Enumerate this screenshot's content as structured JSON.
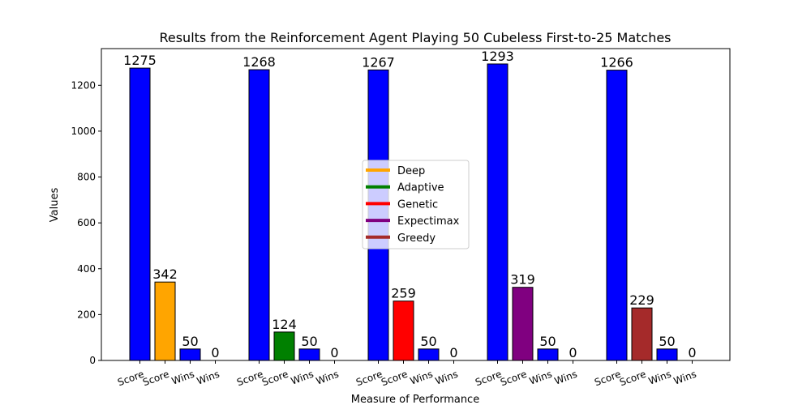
{
  "chart_data": {
    "type": "bar",
    "title": "Results from the Reinforcement Agent Playing 50 Cubeless First-to-25 Matches",
    "xlabel": "Measure of Performance",
    "ylabel": "Values",
    "ylim": [
      0,
      1360
    ],
    "yticks": [
      0,
      200,
      400,
      600,
      800,
      1000,
      1200
    ],
    "grid": false,
    "legend_position": "center",
    "categories": [
      "Score",
      "Score",
      "Wins",
      "Wins"
    ],
    "groups": [
      {
        "values": [
          1275,
          342,
          50,
          0
        ],
        "colors": [
          "#0000ff",
          "#ffa500",
          "#0000ff",
          "#ffa500"
        ]
      },
      {
        "values": [
          1268,
          124,
          50,
          0
        ],
        "colors": [
          "#0000ff",
          "#008000",
          "#0000ff",
          "#008000"
        ]
      },
      {
        "values": [
          1267,
          259,
          50,
          0
        ],
        "colors": [
          "#0000ff",
          "#ff0000",
          "#0000ff",
          "#ff0000"
        ]
      },
      {
        "values": [
          1293,
          319,
          50,
          0
        ],
        "colors": [
          "#0000ff",
          "#800080",
          "#0000ff",
          "#800080"
        ]
      },
      {
        "values": [
          1266,
          229,
          50,
          0
        ],
        "colors": [
          "#0000ff",
          "#a52a2a",
          "#0000ff",
          "#a52a2a"
        ]
      }
    ],
    "legend": [
      {
        "name": "Deep",
        "color": "#ffa500"
      },
      {
        "name": "Adaptive",
        "color": "#008000"
      },
      {
        "name": "Genetic",
        "color": "#ff0000"
      },
      {
        "name": "Expectimax",
        "color": "#800080"
      },
      {
        "name": "Greedy",
        "color": "#a52a2a"
      }
    ]
  }
}
